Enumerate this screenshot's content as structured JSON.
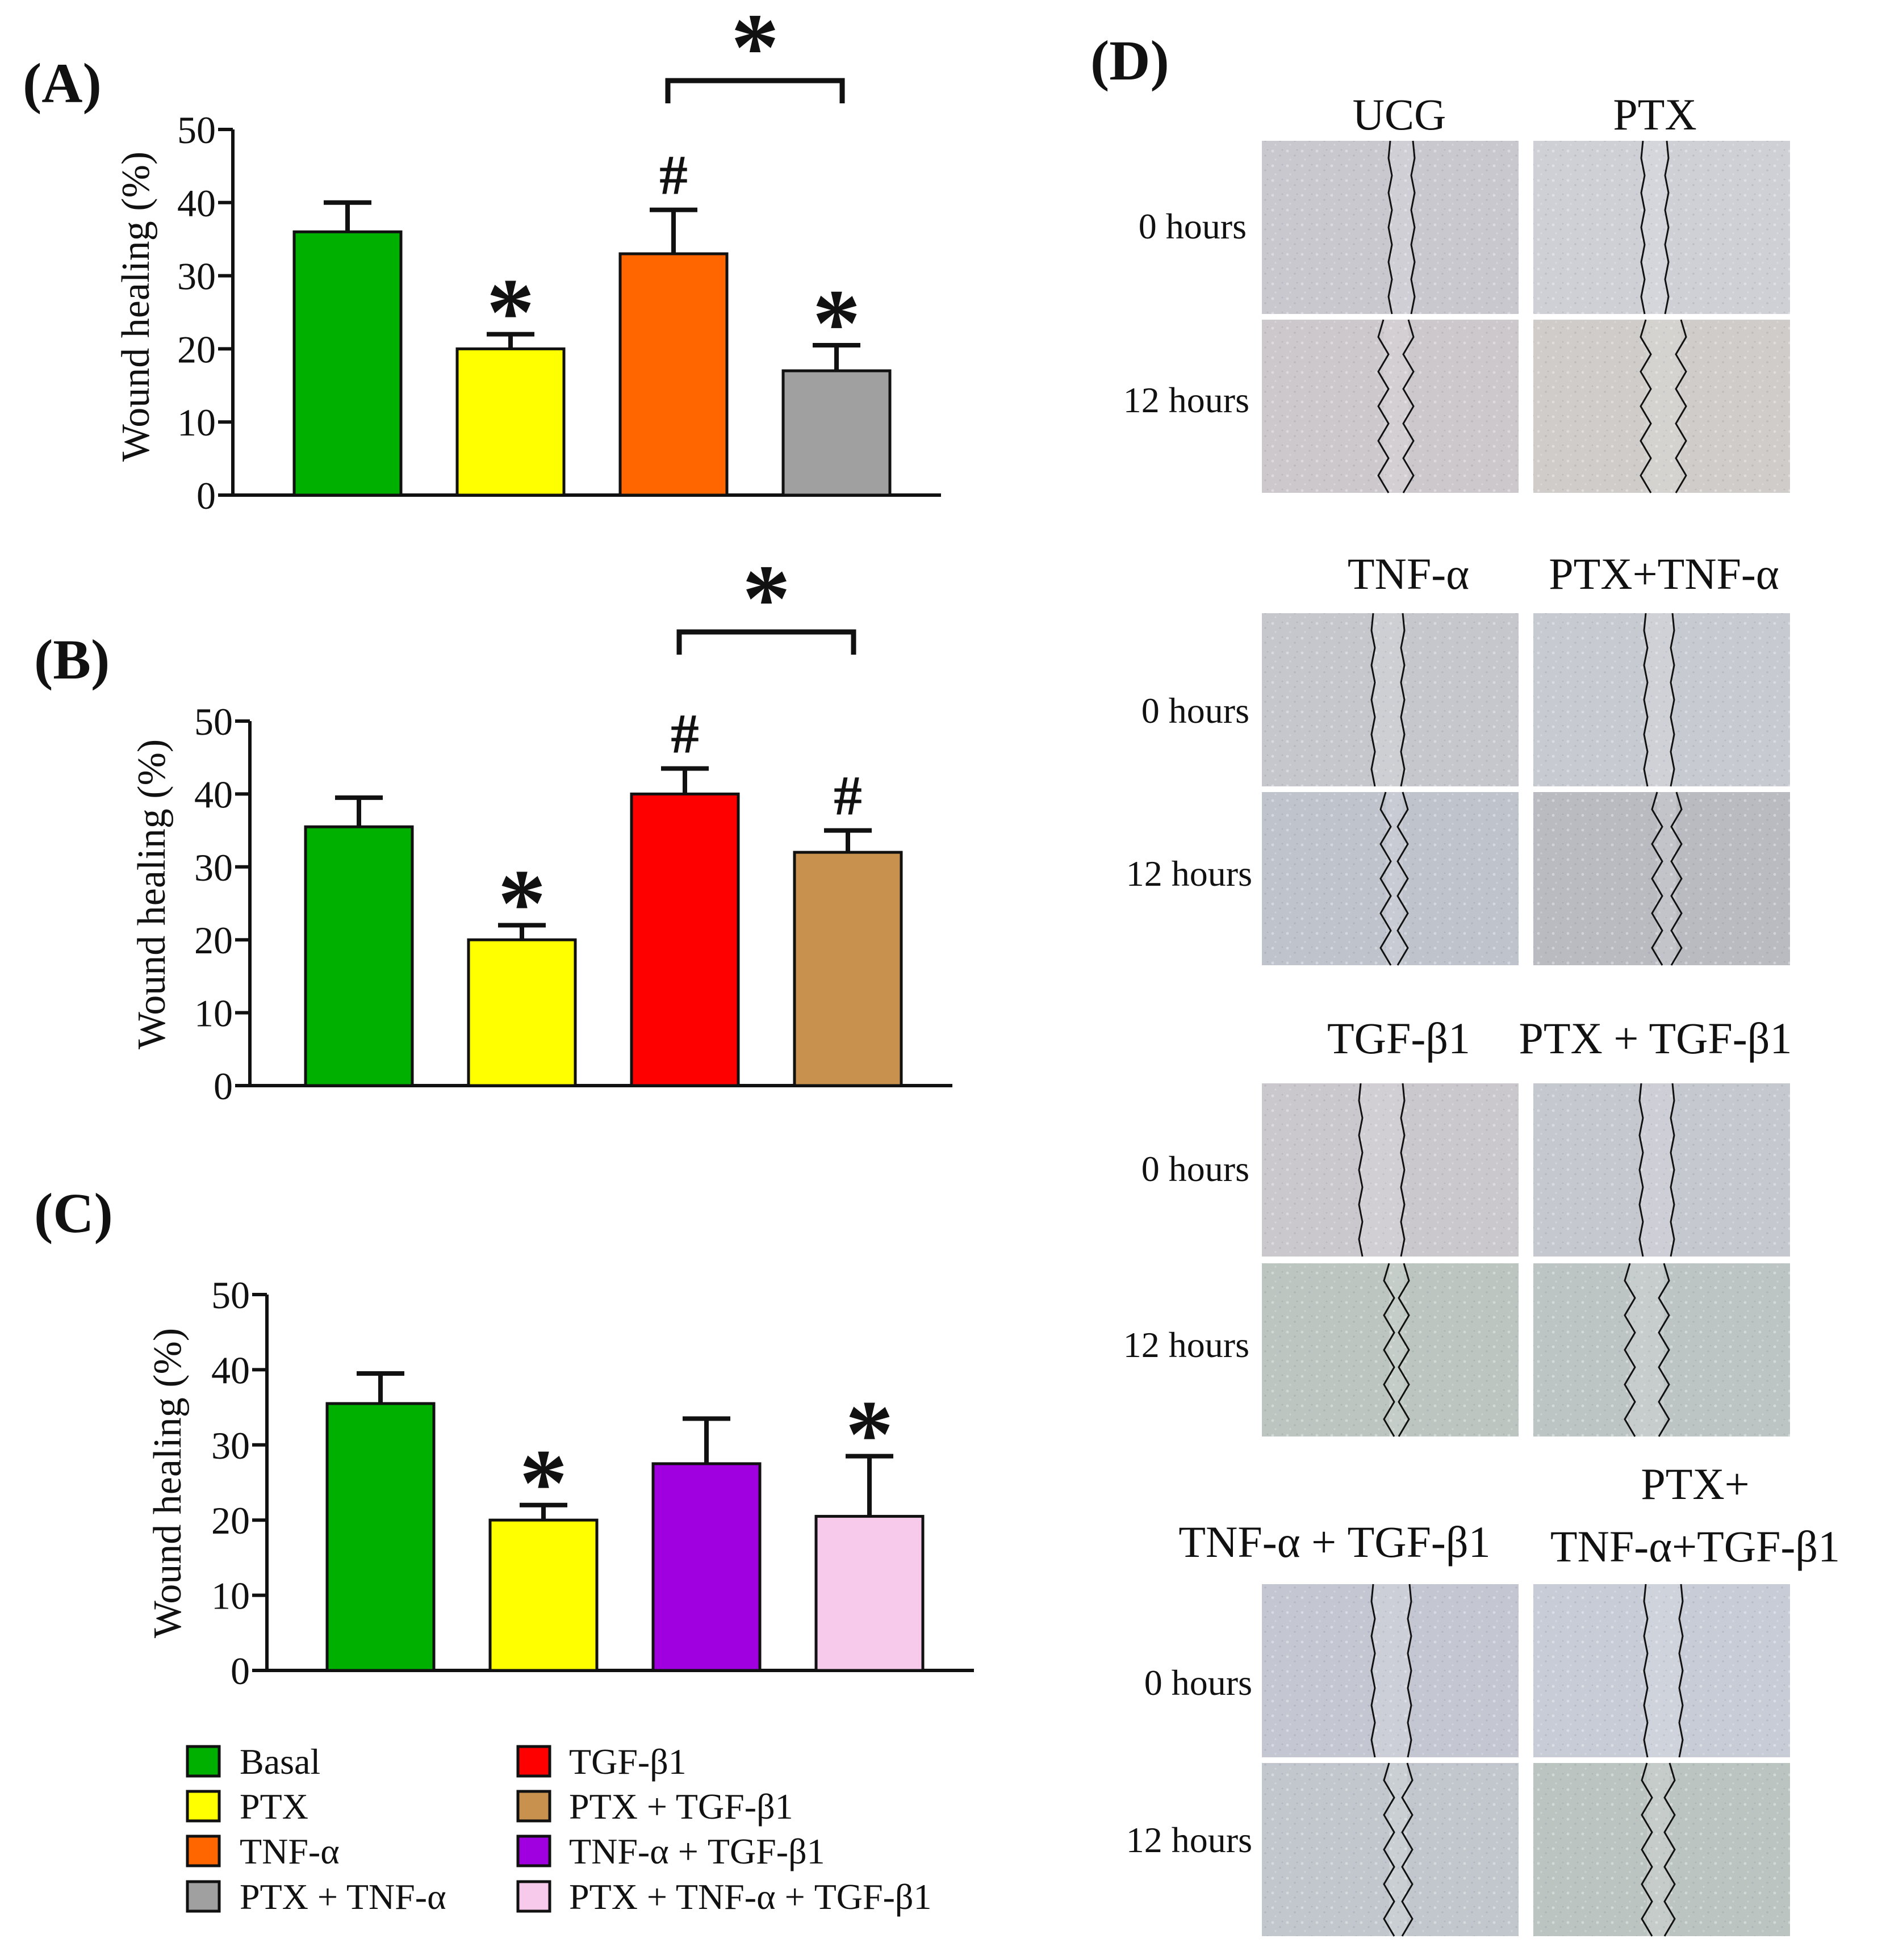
{
  "colors": {
    "Basal": "#00b000",
    "PTX": "#ffff00",
    "TNF-α": "#ff6600",
    "PTX + TNF-α": "#a0a0a0",
    "TGF-β1": "#ff0000",
    "PTX + TGF-β1": "#c8924e",
    "TNF-α + TGF-β1": "#a000e0",
    "PTX + TNF-α + TGF-β1": "#f7c9ea",
    "sig_red": "#ff0000",
    "sig_black": "#111111"
  },
  "chart_data": [
    {
      "panel": "(A)",
      "type": "bar",
      "ylabel": "Wound healing (%)",
      "ylim": [
        0,
        50
      ],
      "yticks": [
        "0",
        "10",
        "20",
        "30",
        "40",
        "50"
      ],
      "categories": [
        "Basal",
        "PTX",
        "TNF-α",
        "PTX + TNF-α"
      ],
      "values": [
        36,
        20,
        33,
        17
      ],
      "errors": [
        4,
        2,
        6,
        3.5
      ],
      "marks": [
        "",
        "*",
        "#",
        "*"
      ],
      "bracket": {
        "from": 2,
        "to": 3,
        "label": "*"
      }
    },
    {
      "panel": "(B)",
      "type": "bar",
      "ylabel": "Wound healing (%)",
      "ylim": [
        0,
        50
      ],
      "yticks": [
        "0",
        "10",
        "20",
        "30",
        "40",
        "50"
      ],
      "categories": [
        "Basal",
        "PTX",
        "TGF-β1",
        "PTX + TGF-β1"
      ],
      "values": [
        35.5,
        20,
        40,
        32
      ],
      "errors": [
        4,
        2,
        3.5,
        3
      ],
      "marks": [
        "",
        "*",
        "#",
        "#"
      ],
      "bracket": {
        "from": 2,
        "to": 3,
        "label": "*"
      }
    },
    {
      "panel": "(C)",
      "type": "bar",
      "ylabel": "Wound healing (%)",
      "ylim": [
        0,
        50
      ],
      "yticks": [
        "0",
        "10",
        "20",
        "30",
        "40",
        "50"
      ],
      "categories": [
        "Basal",
        "PTX",
        "TNF-α + TGF-β1",
        "PTX + TNF-α + TGF-β1"
      ],
      "values": [
        35.5,
        20,
        27.5,
        20.5
      ],
      "errors": [
        4,
        2,
        6,
        8
      ],
      "marks": [
        "",
        "*",
        "",
        "*"
      ],
      "bracket": null
    }
  ],
  "legend": {
    "left": [
      "Basal",
      "PTX",
      "TNF-α",
      "PTX + TNF-α"
    ],
    "right": [
      "TGF-β1",
      "PTX + TGF-β1",
      "TNF-α + TGF-β1",
      "PTX + TNF-α + TGF-β1"
    ]
  },
  "panel_d": {
    "label": "(D)",
    "row_labels": [
      "0 hours",
      "12 hours"
    ],
    "groups": [
      {
        "left": "UCG",
        "right": "PTX"
      },
      {
        "left": "TNF-α",
        "right": "PTX+TNF-α"
      },
      {
        "left": "TGF-β1",
        "right": "PTX + TGF-β1"
      },
      {
        "left": "TNF-α + TGF-β1",
        "right_line1": "PTX+",
        "right_line2": "TNF-α+TGF-β1"
      }
    ]
  }
}
